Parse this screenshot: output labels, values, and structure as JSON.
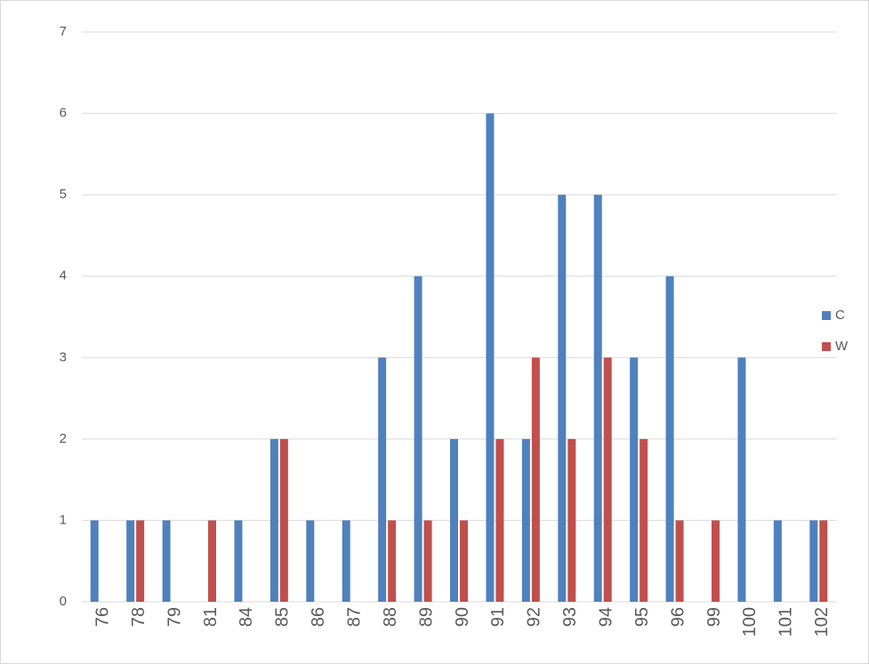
{
  "chart_data": {
    "type": "bar",
    "categories": [
      "76",
      "78",
      "79",
      "81",
      "84",
      "85",
      "86",
      "87",
      "88",
      "89",
      "90",
      "91",
      "92",
      "93",
      "94",
      "95",
      "96",
      "99",
      "100",
      "101",
      "102"
    ],
    "series": [
      {
        "name": "C",
        "color": "#4f81bd",
        "values": [
          1,
          1,
          1,
          0,
          1,
          2,
          1,
          1,
          3,
          4,
          2,
          6,
          2,
          5,
          5,
          3,
          4,
          0,
          3,
          1,
          1
        ]
      },
      {
        "name": "W",
        "color": "#c0504d",
        "values": [
          0,
          1,
          0,
          1,
          0,
          2,
          0,
          0,
          1,
          1,
          1,
          2,
          3,
          2,
          3,
          2,
          1,
          1,
          0,
          0,
          1
        ]
      }
    ],
    "ylim": [
      0,
      7
    ],
    "yticks": [
      0,
      1,
      2,
      3,
      4,
      5,
      6,
      7
    ],
    "grid": true,
    "legend": "right"
  }
}
